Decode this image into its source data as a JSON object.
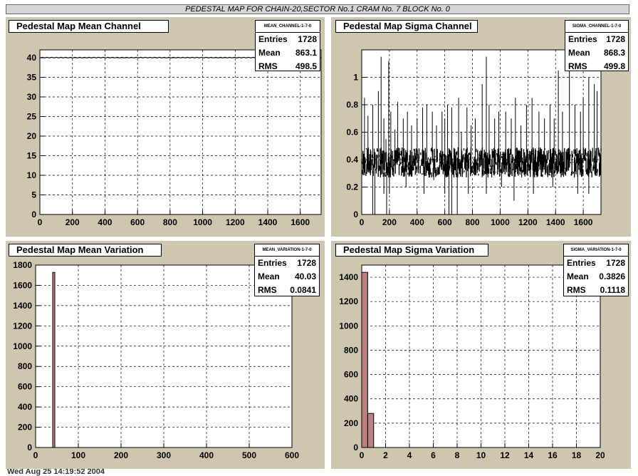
{
  "page_title": "PEDESTAL MAP FOR CHAIN-20,SECTOR No.1 CRAM No. 7 BLOCK No. 0",
  "footer_text": "Wed Aug 25 14:19:52 2004",
  "chart_data": [
    {
      "type": "line",
      "title": "Pedestal Map Mean Channel",
      "stats": {
        "name": "MEAN_CHANNEL-1-7-0",
        "entries": "1728",
        "mean": "863.1",
        "rms": "498.5"
      },
      "xlim": [
        0,
        1728
      ],
      "ylim": [
        0,
        42
      ],
      "xticks": [
        "0",
        "200",
        "400",
        "600",
        "800",
        "1000",
        "1200",
        "1400",
        "1600"
      ],
      "xtick_values": [
        0,
        200,
        400,
        600,
        800,
        1000,
        1200,
        1400,
        1600
      ],
      "yticks": [
        "0",
        "5",
        "10",
        "15",
        "20",
        "25",
        "30",
        "35",
        "40"
      ],
      "ytick_values": [
        0,
        5,
        10,
        15,
        20,
        25,
        30,
        35,
        40
      ],
      "x": [
        0,
        1728
      ],
      "y": [
        40.03,
        40.03
      ],
      "grid": true
    },
    {
      "type": "line",
      "title": "Pedestal Map Sigma Channel",
      "stats": {
        "name": "SIGMA_CHANNEL-1-7-0",
        "entries": "1728",
        "mean": "868.3",
        "rms": "499.8"
      },
      "xlim": [
        0,
        1728
      ],
      "ylim": [
        0,
        1.2
      ],
      "xticks": [
        "0",
        "200",
        "400",
        "600",
        "800",
        "1000",
        "1200",
        "1400",
        "1600"
      ],
      "xtick_values": [
        0,
        200,
        400,
        600,
        800,
        1000,
        1200,
        1400,
        1600
      ],
      "yticks": [
        "0",
        "0.2",
        "0.4",
        "0.6",
        "0.8",
        "1"
      ],
      "ytick_values": [
        0,
        0.2,
        0.4,
        0.6,
        0.8,
        1
      ],
      "y_typical": 0.38,
      "spikes_x": [
        20,
        45,
        80,
        120,
        140,
        160,
        175,
        195,
        210,
        240,
        260,
        300,
        330,
        360,
        400,
        440,
        470,
        510,
        540,
        580,
        600,
        620,
        650,
        700,
        720,
        760,
        790,
        820,
        870,
        900,
        920,
        960,
        990,
        1040,
        1080,
        1110,
        1150,
        1190,
        1230,
        1280,
        1320,
        1360,
        1390,
        1420,
        1450,
        1500,
        1540,
        1580,
        1600,
        1640,
        1680,
        1700
      ],
      "spikes_y": [
        0.85,
        0.72,
        0.8,
        0.9,
        1.15,
        0.7,
        0.55,
        1.12,
        0.75,
        0.62,
        0.82,
        0.7,
        0.75,
        0.65,
        0.7,
        0.78,
        0.8,
        0.75,
        0.65,
        0.75,
        0.7,
        0.8,
        0.78,
        0.85,
        0.6,
        0.78,
        0.65,
        0.7,
        0.95,
        1.15,
        0.8,
        0.7,
        0.75,
        0.75,
        0.7,
        0.85,
        0.65,
        0.8,
        0.85,
        0.75,
        0.7,
        0.8,
        0.7,
        1.05,
        0.75,
        1.1,
        0.8,
        0.75,
        0.85,
        1.0,
        0.95,
        0.9
      ],
      "dips_x": [
        80,
        95,
        160,
        180,
        200,
        320,
        450,
        520,
        600,
        630,
        650,
        690,
        770,
        900,
        1010,
        1100,
        1240,
        1380,
        1560,
        1640
      ],
      "dips_y": [
        0.0,
        0.0,
        0.15,
        0.0,
        0.15,
        0.2,
        0.15,
        0.25,
        0.15,
        0.0,
        0.0,
        0.0,
        0.15,
        0.15,
        0.2,
        0.1,
        0.15,
        0.2,
        0.15,
        0.15
      ],
      "grid": true
    },
    {
      "type": "bar",
      "title": "Pedestal Map Mean Variation",
      "stats": {
        "name": "MEAN_VARIATION-1-7-0",
        "entries": "1728",
        "mean": "40.03",
        "rms": "0.0841"
      },
      "xlim": [
        0,
        600
      ],
      "ylim": [
        0,
        1800
      ],
      "xticks": [
        "0",
        "100",
        "200",
        "300",
        "400",
        "500",
        "600"
      ],
      "xtick_values": [
        0,
        100,
        200,
        300,
        400,
        500,
        600
      ],
      "yticks": [
        "0",
        "200",
        "400",
        "600",
        "800",
        "1000",
        "1200",
        "1400",
        "1600",
        "1800"
      ],
      "ytick_values": [
        0,
        200,
        400,
        600,
        800,
        1000,
        1200,
        1400,
        1600,
        1800
      ],
      "bins": [
        {
          "x0": 40,
          "x1": 45,
          "value": 1728
        }
      ],
      "grid": true
    },
    {
      "type": "bar",
      "title": "Pedestal Map Sigma Variation",
      "stats": {
        "name": "SIGMA_VARIATION-1-7-0",
        "entries": "1728",
        "mean": "0.3826",
        "rms": "0.1118"
      },
      "xlim": [
        0,
        20
      ],
      "ylim": [
        0,
        1500
      ],
      "xticks": [
        "0",
        "2",
        "4",
        "6",
        "8",
        "10",
        "12",
        "14",
        "16",
        "18",
        "20"
      ],
      "xtick_values": [
        0,
        2,
        4,
        6,
        8,
        10,
        12,
        14,
        16,
        18,
        20
      ],
      "yticks": [
        "0",
        "200",
        "400",
        "600",
        "800",
        "1000",
        "1200",
        "1400"
      ],
      "ytick_values": [
        0,
        200,
        400,
        600,
        800,
        1000,
        1200,
        1400
      ],
      "bins": [
        {
          "x0": 0,
          "x1": 0.5,
          "value": 1440
        },
        {
          "x0": 0.5,
          "x1": 1.0,
          "value": 280
        }
      ],
      "grid": true
    }
  ]
}
